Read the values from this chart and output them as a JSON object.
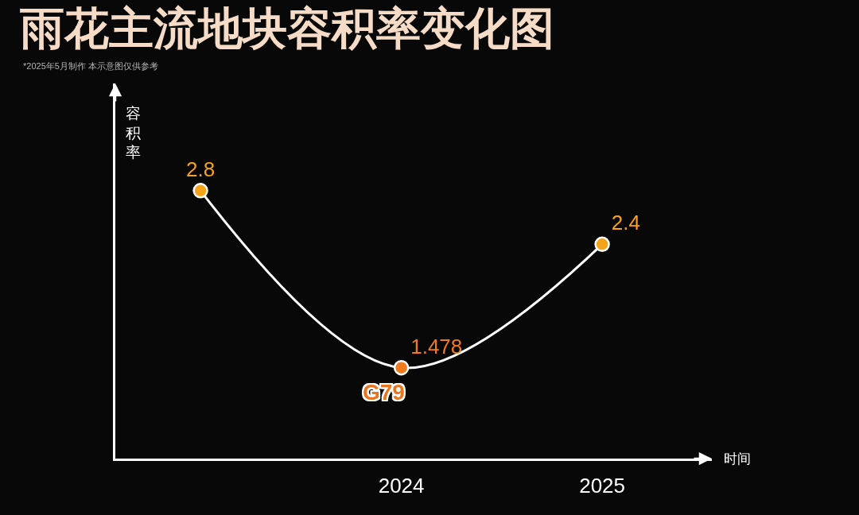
{
  "chart_data": {
    "type": "line",
    "title": "雨花主流地块容积率变化图",
    "subtitle": "*2025年5月制作 本示意图仅供参考",
    "xlabel": "时间",
    "ylabel": "容积率",
    "categories": [
      null,
      "2024",
      "2025"
    ],
    "series": [
      {
        "color": "#ffffff",
        "colors": [
          "#f5a31a",
          "#f07a1c",
          "#f5a31a"
        ],
        "values": [
          2.8,
          1.478,
          2.4
        ]
      }
    ],
    "ylim": [
      0.8,
      3.6
    ],
    "tick_labels": "x",
    "data_labels": true,
    "marker": "circle",
    "line_style": "solid",
    "grid": false,
    "annotations": [
      {
        "text": "G79",
        "x": "2024",
        "y": 1.478
      }
    ]
  }
}
